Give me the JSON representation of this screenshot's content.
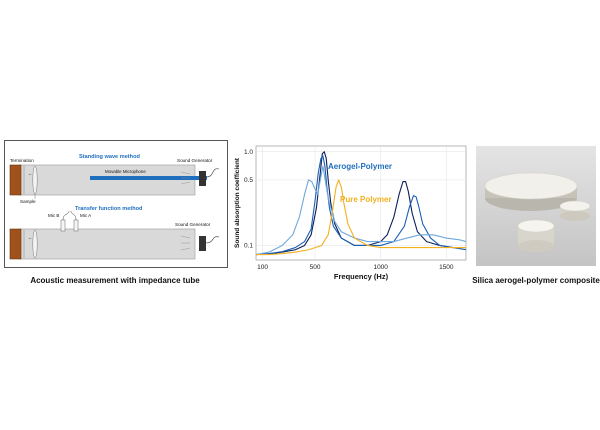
{
  "tube_diagram": {
    "termination_label": "Termination",
    "sample_label": "Sample",
    "standing_wave_title": "Standing wave method",
    "movable_mic_label": "Movable Microphone",
    "sound_generator_top": "Sound Generator",
    "transfer_function_title": "Transfer function method",
    "mic_b_label": "Mic B",
    "mic_a_label": "Mic A",
    "sound_generator_bottom": "Sound Generator",
    "caption": "Acoustic measurement with impedance tube"
  },
  "chart_data": {
    "type": "line",
    "xlabel": "Frequency (Hz)",
    "ylabel": "Sound absorption  coefficient",
    "xlim": [
      50,
      1650
    ],
    "ylim": [
      0.07,
      1.15
    ],
    "yscale": "log",
    "xticks": [
      100,
      500,
      1000,
      1500
    ],
    "xtick_labels": [
      "100",
      "500",
      "1000",
      "1500"
    ],
    "yticks": [
      0.1,
      0.5,
      1.0
    ],
    "ytick_labels": [
      "0.1",
      "0.5",
      "1.0"
    ],
    "annotations": [
      {
        "text": "Aerogel-Polymer",
        "color": "#1f6fbf"
      },
      {
        "text": "Pure Polymer",
        "color": "#f2b01e"
      }
    ],
    "series": [
      {
        "color": "#0c1f5c",
        "x": [
          50,
          150,
          250,
          350,
          420,
          470,
          510,
          540,
          555,
          570,
          585,
          600,
          620,
          650,
          700,
          800,
          900,
          1000,
          1050,
          1100,
          1140,
          1170,
          1190,
          1210,
          1240,
          1280,
          1350,
          1450,
          1550,
          1650
        ],
        "y": [
          0.08,
          0.081,
          0.085,
          0.09,
          0.1,
          0.13,
          0.25,
          0.6,
          0.95,
          1.0,
          0.85,
          0.5,
          0.28,
          0.17,
          0.12,
          0.1,
          0.1,
          0.11,
          0.13,
          0.2,
          0.35,
          0.48,
          0.48,
          0.38,
          0.22,
          0.14,
          0.11,
          0.1,
          0.095,
          0.095
        ]
      },
      {
        "color": "#1a5fb4",
        "x": [
          50,
          150,
          250,
          350,
          420,
          470,
          500,
          525,
          545,
          560,
          575,
          590,
          610,
          640,
          700,
          800,
          900,
          1000,
          1100,
          1180,
          1220,
          1250,
          1270,
          1290,
          1320,
          1380,
          1450,
          1550,
          1650
        ],
        "y": [
          0.08,
          0.082,
          0.086,
          0.095,
          0.11,
          0.15,
          0.3,
          0.6,
          0.85,
          0.9,
          0.7,
          0.42,
          0.25,
          0.16,
          0.12,
          0.1,
          0.1,
          0.1,
          0.11,
          0.16,
          0.26,
          0.34,
          0.33,
          0.26,
          0.17,
          0.12,
          0.1,
          0.095,
          0.09
        ]
      },
      {
        "color": "#6fa8dc",
        "x": [
          50,
          150,
          250,
          330,
          380,
          420,
          450,
          475,
          500,
          520,
          540,
          560,
          600,
          650,
          700,
          800,
          900,
          1000,
          1100,
          1200,
          1300,
          1400,
          1500,
          1600,
          1650
        ],
        "y": [
          0.08,
          0.085,
          0.1,
          0.13,
          0.2,
          0.35,
          0.5,
          0.48,
          0.4,
          0.35,
          0.5,
          0.7,
          0.32,
          0.18,
          0.14,
          0.12,
          0.11,
          0.11,
          0.11,
          0.12,
          0.13,
          0.13,
          0.12,
          0.115,
          0.11
        ]
      },
      {
        "color": "#f2b01e",
        "x": [
          50,
          150,
          250,
          350,
          450,
          550,
          600,
          630,
          660,
          680,
          700,
          720,
          750,
          800,
          900,
          1000,
          1100,
          1200,
          1300,
          1400,
          1500,
          1650
        ],
        "y": [
          0.08,
          0.08,
          0.082,
          0.085,
          0.09,
          0.1,
          0.13,
          0.22,
          0.42,
          0.5,
          0.42,
          0.28,
          0.17,
          0.12,
          0.1,
          0.095,
          0.095,
          0.095,
          0.095,
          0.095,
          0.095,
          0.095
        ]
      }
    ]
  },
  "photo": {
    "caption": "Silica aerogel-polymer composite"
  }
}
